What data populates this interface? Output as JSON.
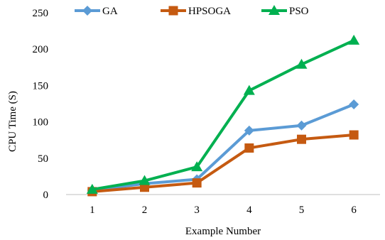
{
  "chart_data": {
    "type": "line",
    "title": "",
    "xlabel": "Example Number",
    "ylabel": "CPU Time (S)",
    "x": [
      1,
      2,
      3,
      4,
      5,
      6
    ],
    "x_tick_labels": [
      "1",
      "2",
      "3",
      "4",
      "5",
      "6"
    ],
    "ylim": [
      0,
      250
    ],
    "y_ticks": [
      0,
      50,
      100,
      150,
      200,
      250
    ],
    "y_tick_labels": [
      "0",
      "50",
      "100",
      "150",
      "200",
      "250"
    ],
    "grid": false,
    "legend_position": "top",
    "series": [
      {
        "name": "GA",
        "values": [
          6,
          15,
          21,
          88,
          95,
          124
        ],
        "color": "#5b9bd5",
        "marker": "diamond"
      },
      {
        "name": "HPSOGA",
        "values": [
          4,
          10,
          16,
          64,
          76,
          82
        ],
        "color": "#c55a11",
        "marker": "square"
      },
      {
        "name": "PSO",
        "values": [
          7,
          19,
          38,
          143,
          179,
          212
        ],
        "color": "#00b050",
        "marker": "triangle"
      }
    ]
  }
}
